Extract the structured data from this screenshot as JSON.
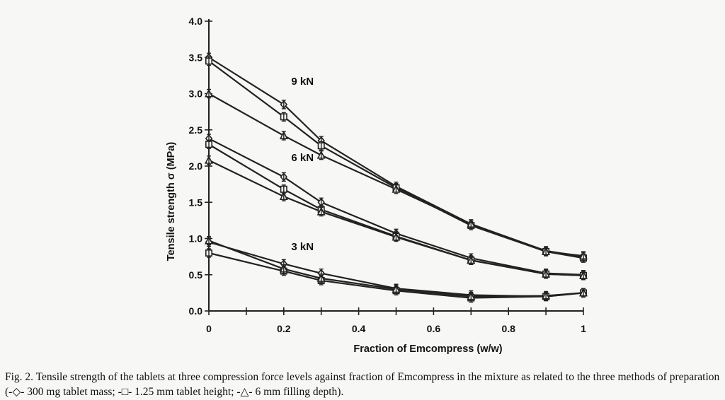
{
  "chart_data": {
    "type": "line",
    "xlabel": "Fraction of Emcompress (w/w)",
    "ylabel": "Tensile strength σ (MPa)",
    "xlim": [
      0,
      1
    ],
    "ylim": [
      0,
      4
    ],
    "x_ticks": [
      "0",
      "0.2",
      "0.4",
      "0.6",
      "0.8",
      "1"
    ],
    "y_ticks": [
      "0.0",
      "0.5",
      "1.0",
      "1.5",
      "2.0",
      "2.5",
      "3.0",
      "3.5",
      "4.0"
    ],
    "grid": false,
    "annotations": [
      {
        "text": "9 kN",
        "x": 0.22,
        "y": 3.12
      },
      {
        "text": "6 kN",
        "x": 0.22,
        "y": 2.07
      },
      {
        "text": "3 kN",
        "x": 0.22,
        "y": 0.84
      }
    ],
    "series": [
      {
        "group": "9 kN",
        "marker": "diamond",
        "x": [
          0,
          0.2,
          0.3,
          0.5,
          0.7,
          0.9,
          1
        ],
        "y": [
          3.5,
          2.85,
          2.35,
          1.72,
          1.2,
          0.83,
          0.75
        ]
      },
      {
        "group": "9 kN",
        "marker": "square",
        "x": [
          0,
          0.2,
          0.3,
          0.5,
          0.7,
          0.9,
          1
        ],
        "y": [
          3.45,
          2.68,
          2.28,
          1.7,
          1.18,
          0.82,
          0.73
        ]
      },
      {
        "group": "9 kN",
        "marker": "triangle",
        "x": [
          0,
          0.2,
          0.3,
          0.5,
          0.7,
          0.9,
          1
        ],
        "y": [
          3.0,
          2.42,
          2.15,
          1.68,
          1.2,
          0.82,
          0.76
        ]
      },
      {
        "group": "6 kN",
        "marker": "diamond",
        "x": [
          0,
          0.2,
          0.3,
          0.5,
          0.7,
          0.9,
          1
        ],
        "y": [
          2.38,
          1.85,
          1.5,
          1.07,
          0.73,
          0.52,
          0.5
        ]
      },
      {
        "group": "6 kN",
        "marker": "square",
        "x": [
          0,
          0.2,
          0.3,
          0.5,
          0.7,
          0.9,
          1
        ],
        "y": [
          2.3,
          1.68,
          1.4,
          1.03,
          0.7,
          0.51,
          0.49
        ]
      },
      {
        "group": "6 kN",
        "marker": "triangle",
        "x": [
          0,
          0.2,
          0.3,
          0.5,
          0.7,
          0.9,
          1
        ],
        "y": [
          2.08,
          1.58,
          1.37,
          1.02,
          0.7,
          0.51,
          0.49
        ]
      },
      {
        "group": "3 kN",
        "marker": "diamond",
        "x": [
          0,
          0.2,
          0.3,
          0.5,
          0.7,
          0.9,
          1
        ],
        "y": [
          0.95,
          0.65,
          0.52,
          0.31,
          0.22,
          0.2,
          0.25
        ]
      },
      {
        "group": "3 kN",
        "marker": "square",
        "x": [
          0,
          0.2,
          0.3,
          0.5,
          0.7,
          0.9,
          1
        ],
        "y": [
          0.8,
          0.55,
          0.42,
          0.28,
          0.18,
          0.2,
          0.25
        ]
      },
      {
        "group": "3 kN",
        "marker": "triangle",
        "x": [
          0,
          0.2,
          0.3,
          0.5,
          0.7,
          0.9,
          1
        ],
        "y": [
          0.97,
          0.58,
          0.45,
          0.3,
          0.2,
          0.21,
          0.25
        ]
      }
    ]
  },
  "caption": {
    "text": "Fig. 2. Tensile strength of the tablets at three compression force levels against fraction of Emcompress in the mixture as related to the three methods of preparation (-◇- 300 mg tablet mass; -□- 1.25 mm tablet height; -△- 6 mm filling depth)."
  }
}
